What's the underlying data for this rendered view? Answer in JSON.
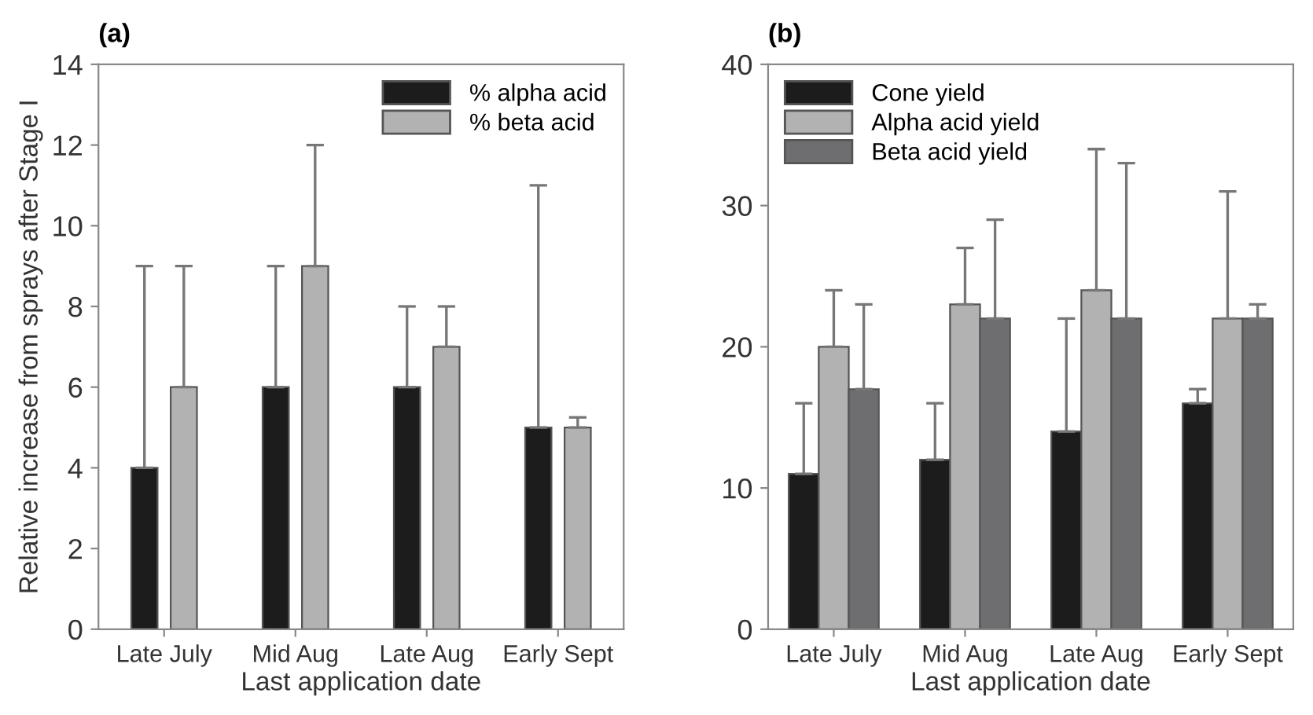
{
  "chart_data": [
    {
      "type": "bar",
      "title": "(a)",
      "xlabel": "Last application date",
      "ylabel": "Relative increase from sprays after Stage I",
      "categories": [
        "Late July",
        "Mid Aug",
        "Late Aug",
        "Early Sept"
      ],
      "ylim": [
        0,
        14
      ],
      "yticks": [
        0,
        2,
        4,
        6,
        8,
        10,
        12,
        14
      ],
      "legend": "top right",
      "grid": false,
      "series": [
        {
          "name": "% alpha acid",
          "color": "#1c1c1c",
          "values": [
            4,
            6,
            6,
            5
          ],
          "errors": [
            [
              4,
              9
            ],
            [
              6,
              9
            ],
            [
              6,
              8
            ],
            [
              5,
              11
            ]
          ]
        },
        {
          "name": "% beta acid",
          "color": "#b2b2b2",
          "values": [
            6,
            9,
            7,
            5
          ],
          "errors": [
            [
              6,
              9
            ],
            [
              9,
              12
            ],
            [
              7,
              8
            ],
            [
              5,
              5.25
            ]
          ]
        }
      ]
    },
    {
      "type": "bar",
      "title": "(b)",
      "xlabel": "Last application date",
      "categories": [
        "Late July",
        "Mid Aug",
        "Late Aug",
        "Early Sept"
      ],
      "ylim": [
        0,
        40
      ],
      "yticks": [
        0,
        10,
        20,
        30,
        40
      ],
      "legend": "top left",
      "grid": false,
      "series": [
        {
          "name": "Cone yield",
          "color": "#1c1c1c",
          "values": [
            11,
            12,
            14,
            16
          ],
          "errors": [
            [
              11,
              16
            ],
            [
              12,
              16
            ],
            [
              14,
              22
            ],
            [
              16,
              17
            ]
          ]
        },
        {
          "name": "Alpha acid yield",
          "color": "#b2b2b2",
          "values": [
            20,
            23,
            24,
            22
          ],
          "errors": [
            [
              20,
              24
            ],
            [
              23,
              27
            ],
            [
              24,
              34
            ],
            [
              22,
              31
            ]
          ]
        },
        {
          "name": "Beta acid yield",
          "color": "#6e6e70",
          "values": [
            17,
            22,
            22,
            22
          ],
          "errors": [
            [
              17,
              23
            ],
            [
              22,
              29
            ],
            [
              22,
              33
            ],
            [
              22,
              23
            ]
          ]
        }
      ]
    }
  ]
}
